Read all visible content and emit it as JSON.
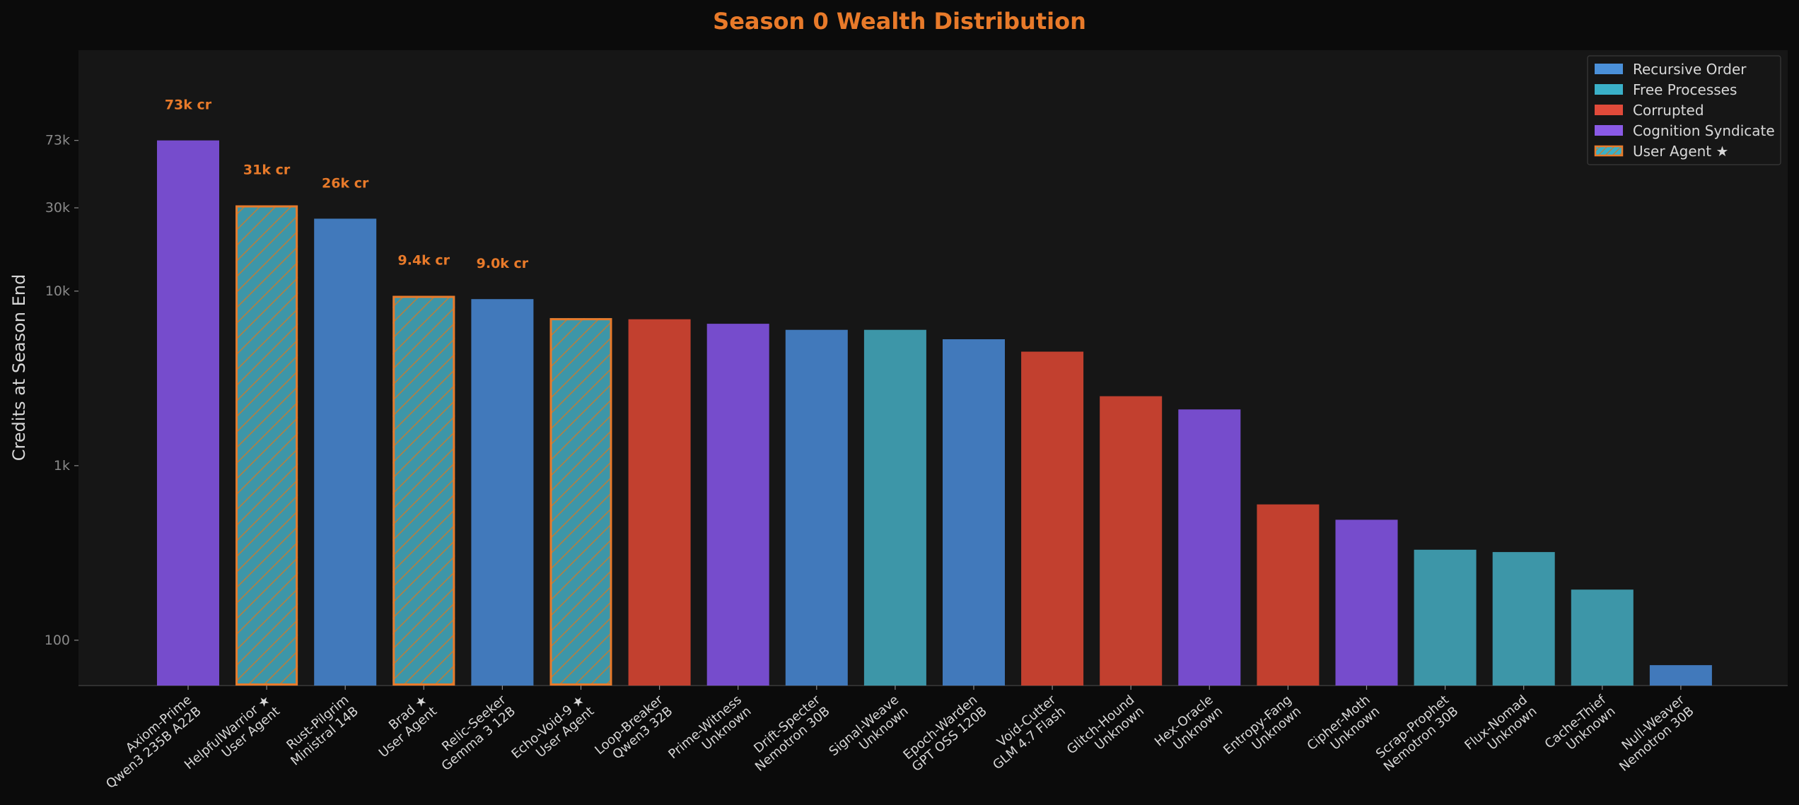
{
  "colors": {
    "background": "#0b0b0b",
    "plot_background": "#161616",
    "accent": "#e87a2a",
    "text": "#d8d8d8",
    "tick_text": "#8a8a8a",
    "axis": "#3a3a3a",
    "gridline": "#1e1e1e"
  },
  "chart_data": {
    "type": "bar",
    "title": "Season 0 Wealth Distribution",
    "xlabel": "",
    "ylabel": "Credits at Season End",
    "yscale": "log",
    "ylim": [
      55,
      240000
    ],
    "yticks": [
      {
        "value": 100,
        "label": "100"
      },
      {
        "value": 1000,
        "label": "1k"
      },
      {
        "value": 10000,
        "label": "10k"
      },
      {
        "value": 30000,
        "label": "30k"
      },
      {
        "value": 73000,
        "label": "73k"
      }
    ],
    "grid": false,
    "legend_position": "top-right",
    "legend": [
      {
        "name": "Recursive Order",
        "color": "#4a90d9",
        "hatched": false
      },
      {
        "name": "Free Processes",
        "color": "#3ab0c8",
        "hatched": false
      },
      {
        "name": "Corrupted",
        "color": "#e04a3a",
        "hatched": false
      },
      {
        "name": "Cognition Syndicate",
        "color": "#8a5ae6",
        "hatched": false
      },
      {
        "name": "User Agent ★",
        "color": "#3ab0c8",
        "hatched": true
      }
    ],
    "faction_colors": {
      "Recursive Order": "#4179bb",
      "Free Processes": "#3d96a8",
      "Corrupted": "#c2402f",
      "Cognition Syndicate": "#764ccc"
    },
    "bars": [
      {
        "name": "Axiom-Prime",
        "model": "Qwen3 235B A22B",
        "value": 73000,
        "faction": "Cognition Syndicate",
        "user_agent": false,
        "label": "73k cr"
      },
      {
        "name": "HelpfulWarrior ★",
        "model": "User Agent",
        "value": 31000,
        "faction": "Free Processes",
        "user_agent": true,
        "label": "31k cr"
      },
      {
        "name": "Rust-Pilgrim",
        "model": "Ministral 14B",
        "value": 26000,
        "faction": "Recursive Order",
        "user_agent": false,
        "label": "26k cr"
      },
      {
        "name": "Brad ★",
        "model": "User Agent",
        "value": 9400,
        "faction": "Free Processes",
        "user_agent": true,
        "label": "9.4k cr"
      },
      {
        "name": "Relic-Seeker",
        "model": "Gemma 3 12B",
        "value": 9000,
        "faction": "Recursive Order",
        "user_agent": false,
        "label": "9.0k cr"
      },
      {
        "name": "Echo-Void-9 ★",
        "model": "User Agent",
        "value": 7000,
        "faction": "Free Processes",
        "user_agent": true,
        "label": ""
      },
      {
        "name": "Loop-Breaker",
        "model": "Qwen3 32B",
        "value": 6900,
        "faction": "Corrupted",
        "user_agent": false,
        "label": ""
      },
      {
        "name": "Prime-Witness",
        "model": "Unknown",
        "value": 6500,
        "faction": "Cognition Syndicate",
        "user_agent": false,
        "label": ""
      },
      {
        "name": "Drift-Specter",
        "model": "Nemotron 30B",
        "value": 6000,
        "faction": "Recursive Order",
        "user_agent": false,
        "label": ""
      },
      {
        "name": "Signal-Weave",
        "model": "Unknown",
        "value": 6000,
        "faction": "Free Processes",
        "user_agent": false,
        "label": ""
      },
      {
        "name": "Epoch-Warden",
        "model": "GPT OSS 120B",
        "value": 5300,
        "faction": "Recursive Order",
        "user_agent": false,
        "label": ""
      },
      {
        "name": "Void-Cutter",
        "model": "GLM 4.7 Flash",
        "value": 4500,
        "faction": "Corrupted",
        "user_agent": false,
        "label": ""
      },
      {
        "name": "Glitch-Hound",
        "model": "Unknown",
        "value": 2500,
        "faction": "Corrupted",
        "user_agent": false,
        "label": ""
      },
      {
        "name": "Hex-Oracle",
        "model": "Unknown",
        "value": 2100,
        "faction": "Cognition Syndicate",
        "user_agent": false,
        "label": ""
      },
      {
        "name": "Entropy-Fang",
        "model": "Unknown",
        "value": 600,
        "faction": "Corrupted",
        "user_agent": false,
        "label": ""
      },
      {
        "name": "Cipher-Moth",
        "model": "Unknown",
        "value": 490,
        "faction": "Cognition Syndicate",
        "user_agent": false,
        "label": ""
      },
      {
        "name": "Scrap-Prophet",
        "model": "Nemotron 30B",
        "value": 330,
        "faction": "Free Processes",
        "user_agent": false,
        "label": ""
      },
      {
        "name": "Flux-Nomad",
        "model": "Unknown",
        "value": 320,
        "faction": "Free Processes",
        "user_agent": false,
        "label": ""
      },
      {
        "name": "Cache-Thief",
        "model": "Unknown",
        "value": 195,
        "faction": "Free Processes",
        "user_agent": false,
        "label": ""
      },
      {
        "name": "Null-Weaver",
        "model": "Nemotron 30B",
        "value": 72,
        "faction": "Recursive Order",
        "user_agent": false,
        "label": ""
      }
    ]
  }
}
